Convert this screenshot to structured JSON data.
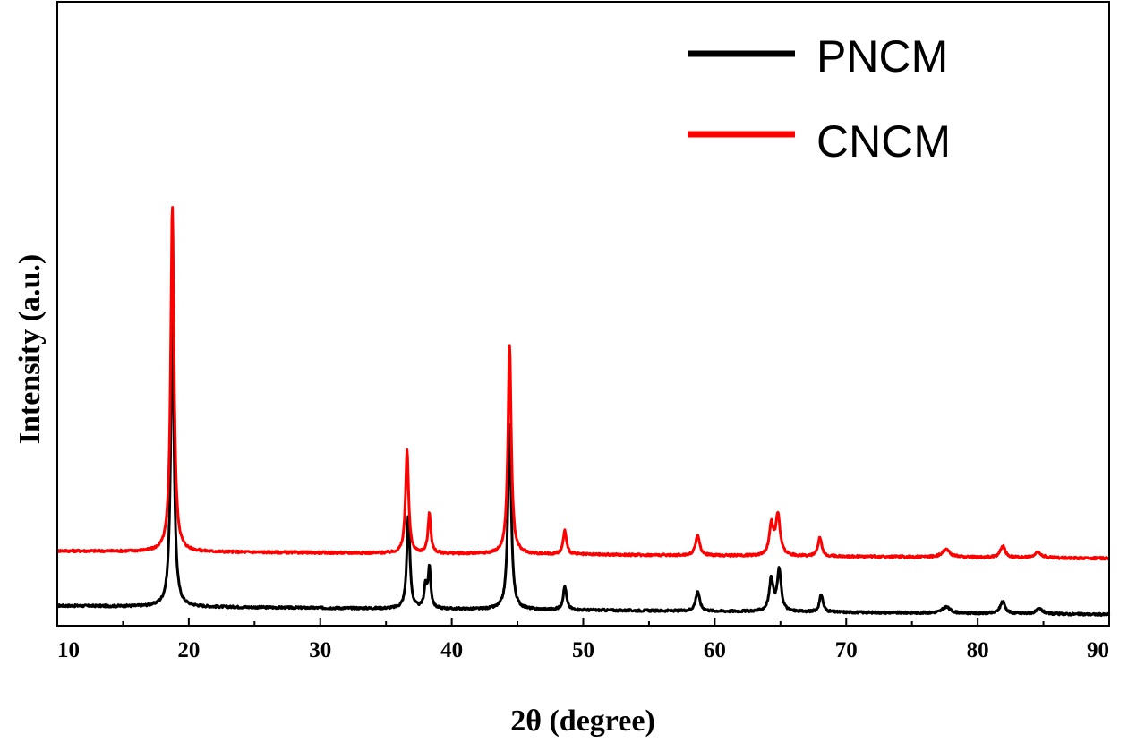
{
  "chart_data": {
    "type": "line",
    "xlabel": "2θ (degree)",
    "ylabel": "Intensity (a.u.)",
    "xlim": [
      10,
      90
    ],
    "ylim": [
      0,
      100
    ],
    "xticks": [
      10,
      20,
      30,
      40,
      50,
      60,
      70,
      80,
      90
    ],
    "y_tick_labels": false,
    "grid": false,
    "legend_position": "top-right",
    "series": [
      {
        "name": "PNCM",
        "color": "#000000",
        "baseline": 3.2,
        "baseline_end": 1.8,
        "peaks": [
          {
            "x": 18.75,
            "y": 46.5,
            "w": 0.15
          },
          {
            "x": 36.7,
            "y": 15.0,
            "w": 0.14
          },
          {
            "x": 38.0,
            "y": 3.5,
            "w": 0.12
          },
          {
            "x": 38.3,
            "y": 6.5,
            "w": 0.12
          },
          {
            "x": 44.4,
            "y": 29.5,
            "w": 0.15
          },
          {
            "x": 48.6,
            "y": 3.8,
            "w": 0.15
          },
          {
            "x": 58.7,
            "y": 3.2,
            "w": 0.18
          },
          {
            "x": 64.3,
            "y": 5.2,
            "w": 0.18
          },
          {
            "x": 64.9,
            "y": 6.6,
            "w": 0.18
          },
          {
            "x": 68.1,
            "y": 2.8,
            "w": 0.16
          },
          {
            "x": 77.6,
            "y": 1.0,
            "w": 0.35
          },
          {
            "x": 81.9,
            "y": 2.0,
            "w": 0.22
          },
          {
            "x": 84.7,
            "y": 0.8,
            "w": 0.3
          }
        ]
      },
      {
        "name": "CNCM",
        "color": "#ff0000",
        "baseline": 12.0,
        "baseline_end": 10.8,
        "peaks": [
          {
            "x": 18.75,
            "y": 55.5,
            "w": 0.15
          },
          {
            "x": 36.6,
            "y": 16.5,
            "w": 0.14
          },
          {
            "x": 38.3,
            "y": 6.4,
            "w": 0.13
          },
          {
            "x": 44.4,
            "y": 33.5,
            "w": 0.15
          },
          {
            "x": 48.6,
            "y": 3.8,
            "w": 0.15
          },
          {
            "x": 58.7,
            "y": 3.3,
            "w": 0.18
          },
          {
            "x": 64.3,
            "y": 4.8,
            "w": 0.18
          },
          {
            "x": 64.8,
            "y": 6.5,
            "w": 0.2
          },
          {
            "x": 68.0,
            "y": 3.0,
            "w": 0.16
          },
          {
            "x": 77.6,
            "y": 1.2,
            "w": 0.35
          },
          {
            "x": 81.9,
            "y": 1.9,
            "w": 0.22
          },
          {
            "x": 84.6,
            "y": 0.9,
            "w": 0.3
          }
        ]
      }
    ]
  }
}
